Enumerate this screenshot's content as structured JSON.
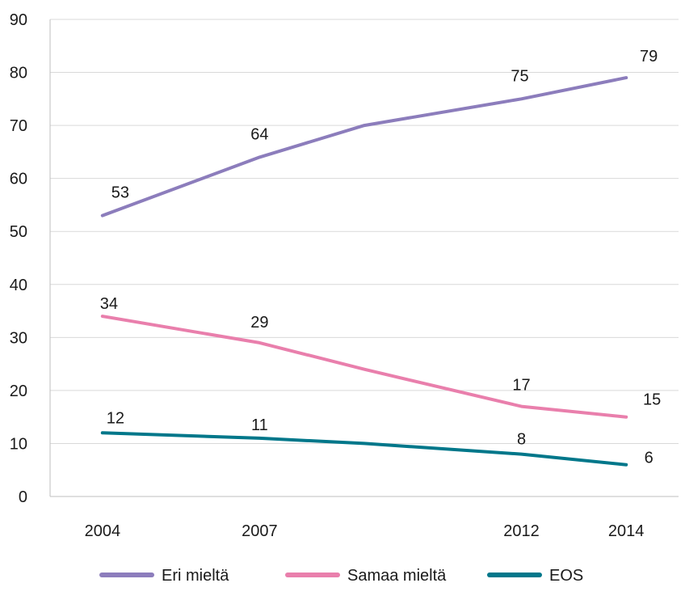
{
  "chart_data": {
    "type": "line",
    "title": "",
    "xlabel": "",
    "ylabel": "",
    "x": [
      2004,
      2007,
      2009,
      2012,
      2014
    ],
    "x_tick_labels": [
      "2004",
      "2007",
      "",
      "2012",
      "2014"
    ],
    "ylim": [
      0,
      90
    ],
    "yticks": [
      0,
      10,
      20,
      30,
      40,
      50,
      60,
      70,
      80,
      90
    ],
    "grid": true,
    "legend_position": "bottom",
    "series": [
      {
        "name": "Eri mieltä",
        "color": "#8C7DBC",
        "values": [
          53,
          64,
          70,
          75,
          79
        ],
        "labels": [
          "53",
          "64",
          "",
          "75",
          "79"
        ]
      },
      {
        "name": "Samaa mieltä",
        "color": "#E97FAC",
        "values": [
          34,
          29,
          24,
          17,
          15
        ],
        "labels": [
          "34",
          "29",
          "",
          "17",
          "15"
        ]
      },
      {
        "name": "EOS",
        "color": "#00778A",
        "values": [
          12,
          11,
          10,
          8,
          6
        ],
        "labels": [
          "12",
          "11",
          "",
          "8",
          "6"
        ]
      }
    ]
  }
}
